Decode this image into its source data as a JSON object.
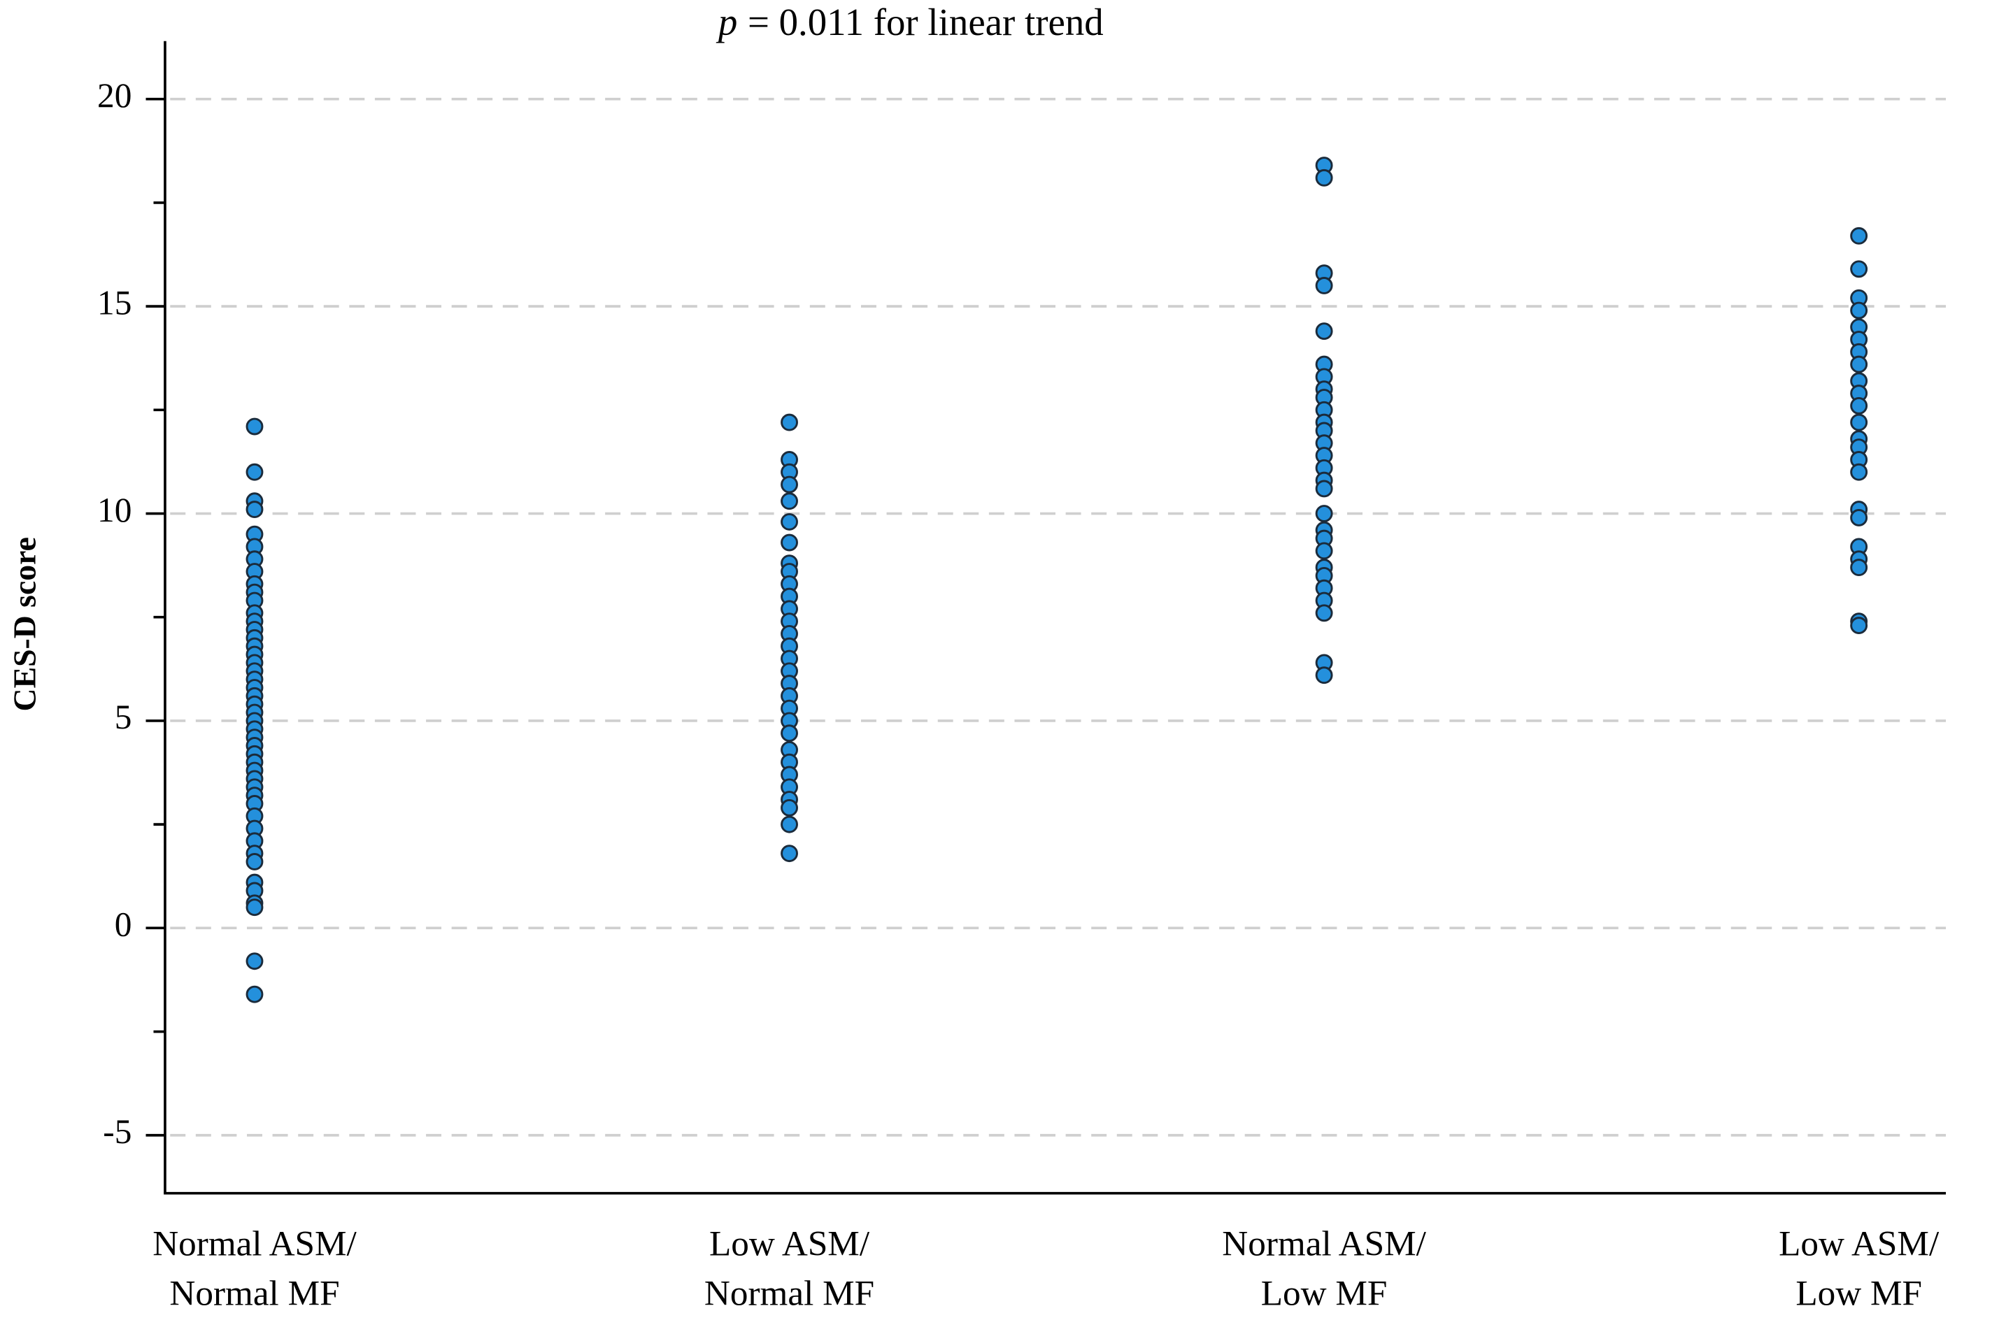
{
  "chart_data": {
    "type": "scatter",
    "annotation_symbol": "p",
    "annotation": "= 0.011 for linear trend",
    "y_label": "CES-D score",
    "categories": [
      [
        "Normal ASM/",
        "Normal MF"
      ],
      [
        "Low ASM/",
        "Normal MF"
      ],
      [
        "Normal ASM/",
        "Low MF"
      ],
      [
        "Low ASM/",
        "Low MF"
      ]
    ],
    "values": [
      [
        12.1,
        11.0,
        10.3,
        10.1,
        9.5,
        9.2,
        8.9,
        8.6,
        8.3,
        8.1,
        7.9,
        7.6,
        7.4,
        7.2,
        7.0,
        6.8,
        6.6,
        6.4,
        6.2,
        6.0,
        5.8,
        5.6,
        5.4,
        5.2,
        5.0,
        4.8,
        4.6,
        4.4,
        4.2,
        4.0,
        3.8,
        3.6,
        3.4,
        3.2,
        3.0,
        2.7,
        2.4,
        2.1,
        1.8,
        1.6,
        1.1,
        0.9,
        0.6,
        0.5,
        -0.8,
        -1.6
      ],
      [
        12.2,
        11.3,
        11.0,
        10.7,
        10.3,
        9.8,
        9.3,
        8.8,
        8.6,
        8.3,
        8.0,
        7.7,
        7.4,
        7.1,
        6.8,
        6.5,
        6.2,
        5.9,
        5.6,
        5.3,
        5.0,
        4.7,
        4.3,
        4.0,
        3.7,
        3.4,
        3.1,
        2.9,
        2.5,
        1.8
      ],
      [
        18.4,
        18.1,
        15.8,
        15.5,
        14.4,
        13.6,
        13.3,
        13.0,
        12.8,
        12.5,
        12.2,
        12.0,
        11.7,
        11.4,
        11.1,
        10.8,
        10.6,
        10.0,
        9.6,
        9.4,
        9.1,
        8.7,
        8.5,
        8.2,
        7.9,
        7.6,
        6.4,
        6.1
      ],
      [
        16.7,
        15.9,
        15.2,
        14.9,
        14.5,
        14.2,
        13.9,
        13.6,
        13.2,
        12.9,
        12.6,
        12.2,
        11.8,
        11.6,
        11.3,
        11.0,
        10.1,
        9.9,
        9.2,
        8.9,
        8.7,
        7.4,
        7.3
      ]
    ],
    "color": "#2490dc",
    "ylim": [
      -6.4,
      21.4
    ],
    "yticks": [
      -5,
      0,
      5,
      10,
      15,
      20
    ],
    "yminorticks": [
      -2.5,
      2.5,
      7.5,
      12.5,
      17.5
    ],
    "grid": true
  }
}
